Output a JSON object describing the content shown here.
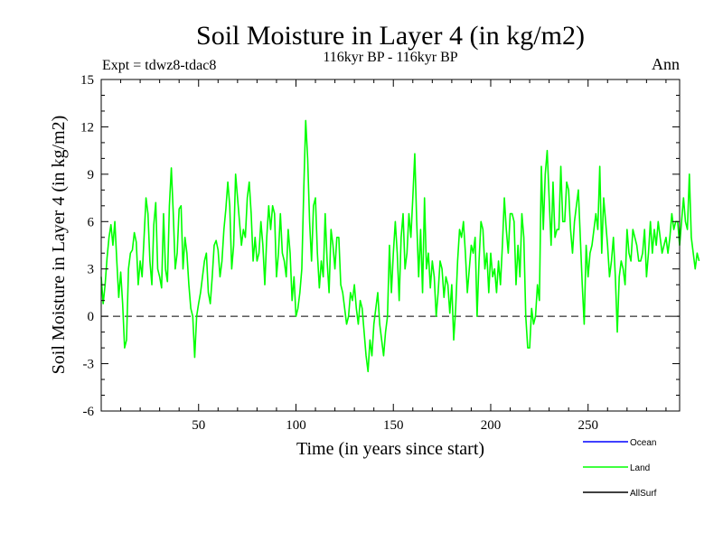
{
  "chart_data": {
    "type": "line",
    "title": "Soil Moisture in Layer 4 (in kg/m2)",
    "subtitle": "116kyr BP - 116kyr BP",
    "experiment": "Expt = tdwz8-tdac8",
    "season": "Ann",
    "xlabel": "Time (in years since start)",
    "ylabel": "Soil Moisture in Layer 4 (in kg/m2)",
    "xlim": [
      0,
      297
    ],
    "ylim": [
      -6,
      15
    ],
    "xticks": [
      50,
      100,
      150,
      200,
      250
    ],
    "xtick_labels": [
      "50",
      "100",
      "150",
      "200",
      "250"
    ],
    "yticks": [
      -6,
      -3,
      0,
      3,
      6,
      9,
      12,
      15
    ],
    "ytick_labels": [
      "-6",
      "-3",
      "0",
      "3",
      "6",
      "9",
      "12",
      "15"
    ],
    "zero_line": 0,
    "legend": [
      {
        "name": "Ocean",
        "color": "#0000ff"
      },
      {
        "name": "Land",
        "color": "#00ff00"
      },
      {
        "name": "AllSurf",
        "color": "#000000"
      }
    ],
    "series": [
      {
        "name": "Land",
        "color": "#00ff00",
        "x_start": 0,
        "x_step": 1,
        "values": [
          2.5,
          0.8,
          2.0,
          3.7,
          5.0,
          5.8,
          4.5,
          6.0,
          3.5,
          1.2,
          2.8,
          0.8,
          -2.0,
          -1.5,
          3.0,
          4.0,
          4.2,
          5.3,
          4.7,
          2.0,
          3.5,
          2.5,
          5.0,
          7.5,
          6.5,
          3.5,
          2.0,
          5.8,
          7.2,
          3.0,
          2.5,
          1.8,
          6.5,
          3.0,
          2.2,
          7.0,
          9.4,
          6.5,
          3.0,
          4.0,
          6.8,
          7.0,
          3.0,
          5.0,
          4.0,
          2.0,
          0.5,
          0.0,
          -2.6,
          0.0,
          0.8,
          1.5,
          2.5,
          3.5,
          4.0,
          1.5,
          0.8,
          2.5,
          4.5,
          4.8,
          4.2,
          2.5,
          3.5,
          5.5,
          6.8,
          8.5,
          7.0,
          3.0,
          4.5,
          9.0,
          7.5,
          6.0,
          4.5,
          5.5,
          5.0,
          7.5,
          8.5,
          6.5,
          3.5,
          5.0,
          3.5,
          4.0,
          6.0,
          4.5,
          2.0,
          5.0,
          7.0,
          5.5,
          7.0,
          6.5,
          2.5,
          4.0,
          6.5,
          4.0,
          3.5,
          2.5,
          5.5,
          4.0,
          1.0,
          2.5,
          0.0,
          0.5,
          1.5,
          3.0,
          8.0,
          12.4,
          10.0,
          6.0,
          3.5,
          7.0,
          7.5,
          4.0,
          1.8,
          3.5,
          2.5,
          6.5,
          3.5,
          1.5,
          5.5,
          4.5,
          3.0,
          5.0,
          5.0,
          2.0,
          1.5,
          0.5,
          -0.5,
          0.0,
          1.5,
          1.0,
          2.0,
          0.5,
          -0.5,
          1.0,
          0.5,
          -1.0,
          -2.5,
          -3.5,
          -1.5,
          -2.5,
          -0.5,
          0.5,
          1.5,
          -0.5,
          -1.5,
          -2.5,
          -1.0,
          0.0,
          4.5,
          1.5,
          4.0,
          6.0,
          4.0,
          1.0,
          5.0,
          6.5,
          3.0,
          4.0,
          6.5,
          5.0,
          7.5,
          10.3,
          6.0,
          2.5,
          5.5,
          1.5,
          7.5,
          3.0,
          4.0,
          1.8,
          3.5,
          2.5,
          0.0,
          1.5,
          3.5,
          3.0,
          1.2,
          2.5,
          2.0,
          0.2,
          2.0,
          -1.5,
          0.5,
          3.5,
          5.5,
          5.0,
          6.0,
          4.0,
          1.5,
          3.0,
          4.5,
          4.0,
          5.0,
          0.0,
          3.5,
          6.0,
          5.5,
          3.0,
          4.0,
          1.5,
          4.0,
          2.5,
          3.0,
          1.5,
          3.5,
          2.0,
          4.5,
          7.5,
          5.5,
          4.0,
          6.5,
          6.5,
          6.0,
          2.0,
          4.5,
          2.5,
          6.5,
          5.0,
          0.0,
          -2.0,
          -2.0,
          0.5,
          -0.5,
          0.0,
          2.0,
          1.0,
          9.5,
          5.5,
          9.0,
          10.5,
          7.5,
          4.5,
          8.5,
          5.0,
          5.5,
          5.5,
          9.5,
          6.0,
          6.0,
          8.5,
          8.0,
          5.5,
          4.0,
          6.0,
          7.0,
          8.0,
          5.0,
          2.0,
          -0.5,
          4.5,
          2.5,
          4.0,
          4.5,
          5.5,
          6.5,
          5.5,
          9.5,
          4.0,
          7.5,
          6.0,
          4.5,
          2.5,
          3.5,
          5.0,
          2.5,
          -1.0,
          2.5,
          3.5,
          3.0,
          2.0,
          5.5,
          4.0,
          3.5,
          5.5,
          5.0,
          4.5,
          3.5,
          3.5,
          4.0,
          5.5,
          2.5,
          4.0,
          6.0,
          4.0,
          5.5,
          4.5,
          6.0,
          5.0,
          4.0,
          4.5,
          5.0,
          4.0,
          5.0,
          6.5,
          5.5,
          6.0,
          6.0,
          4.5,
          6.0,
          7.5,
          6.0,
          5.5,
          9.0,
          5.0,
          4.0,
          3.0,
          4.0,
          3.5
        ]
      }
    ]
  }
}
